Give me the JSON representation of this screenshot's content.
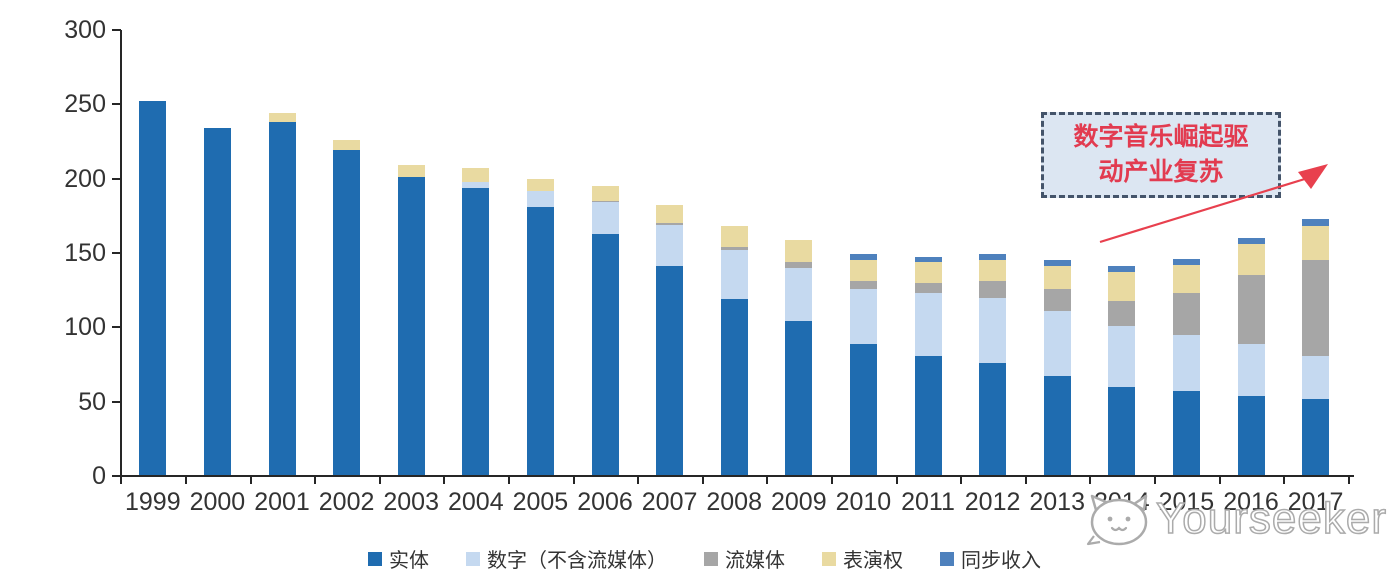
{
  "chart_data": {
    "type": "bar",
    "stacked": true,
    "title": "",
    "xlabel": "",
    "ylabel": "",
    "ylim": [
      0,
      300
    ],
    "yticks": [
      0,
      50,
      100,
      150,
      200,
      250,
      300
    ],
    "grid": false,
    "legend_position": "bottom",
    "categories": [
      "1999",
      "2000",
      "2001",
      "2002",
      "2003",
      "2004",
      "2005",
      "2006",
      "2007",
      "2008",
      "2009",
      "2010",
      "2011",
      "2012",
      "2013",
      "2014",
      "2015",
      "2016",
      "2017"
    ],
    "series": [
      {
        "key": "physical",
        "name": "实体",
        "color": "#1F6CB0",
        "values": [
          252,
          234,
          238,
          219,
          201,
          194,
          181,
          163,
          141,
          119,
          104,
          89,
          81,
          76,
          67,
          60,
          57,
          54,
          52
        ]
      },
      {
        "key": "digital-excl-streaming",
        "name": "数字（不含流媒体）",
        "color": "#C5D9F0",
        "values": [
          0,
          0,
          0,
          0,
          0,
          4,
          11,
          21,
          28,
          33,
          36,
          37,
          42,
          44,
          44,
          41,
          38,
          35,
          29
        ]
      },
      {
        "key": "streaming",
        "name": "流媒体",
        "color": "#A6A6A6",
        "values": [
          0,
          0,
          0,
          0,
          0,
          0,
          0,
          1,
          1,
          2,
          4,
          5,
          7,
          11,
          15,
          17,
          28,
          46,
          64
        ]
      },
      {
        "key": "performance-rights",
        "name": "表演权",
        "color": "#E9DAA1",
        "values": [
          0,
          0,
          6,
          7,
          8,
          9,
          8,
          10,
          12,
          14,
          15,
          14,
          14,
          14,
          15,
          19,
          19,
          21,
          23
        ]
      },
      {
        "key": "sync-revenue",
        "name": "同步收入",
        "color": "#4E81BD",
        "values": [
          0,
          0,
          0,
          0,
          0,
          0,
          0,
          0,
          0,
          0,
          0,
          4,
          3,
          4,
          4,
          4,
          4,
          4,
          5
        ]
      }
    ]
  },
  "annotation": {
    "line1": "数字音乐崛起驱",
    "line2": "动产业复苏",
    "text_color": "#E23B50",
    "box_fill": "#DCE6F2",
    "box_border": "#44546A",
    "arrow_color": "#E8404E"
  },
  "watermark": {
    "text": "Yourseeker",
    "logo": "cat-face-icon",
    "color": "#ABABAB"
  },
  "axis": {
    "line_color": "#262626",
    "label_color": "#333333"
  }
}
